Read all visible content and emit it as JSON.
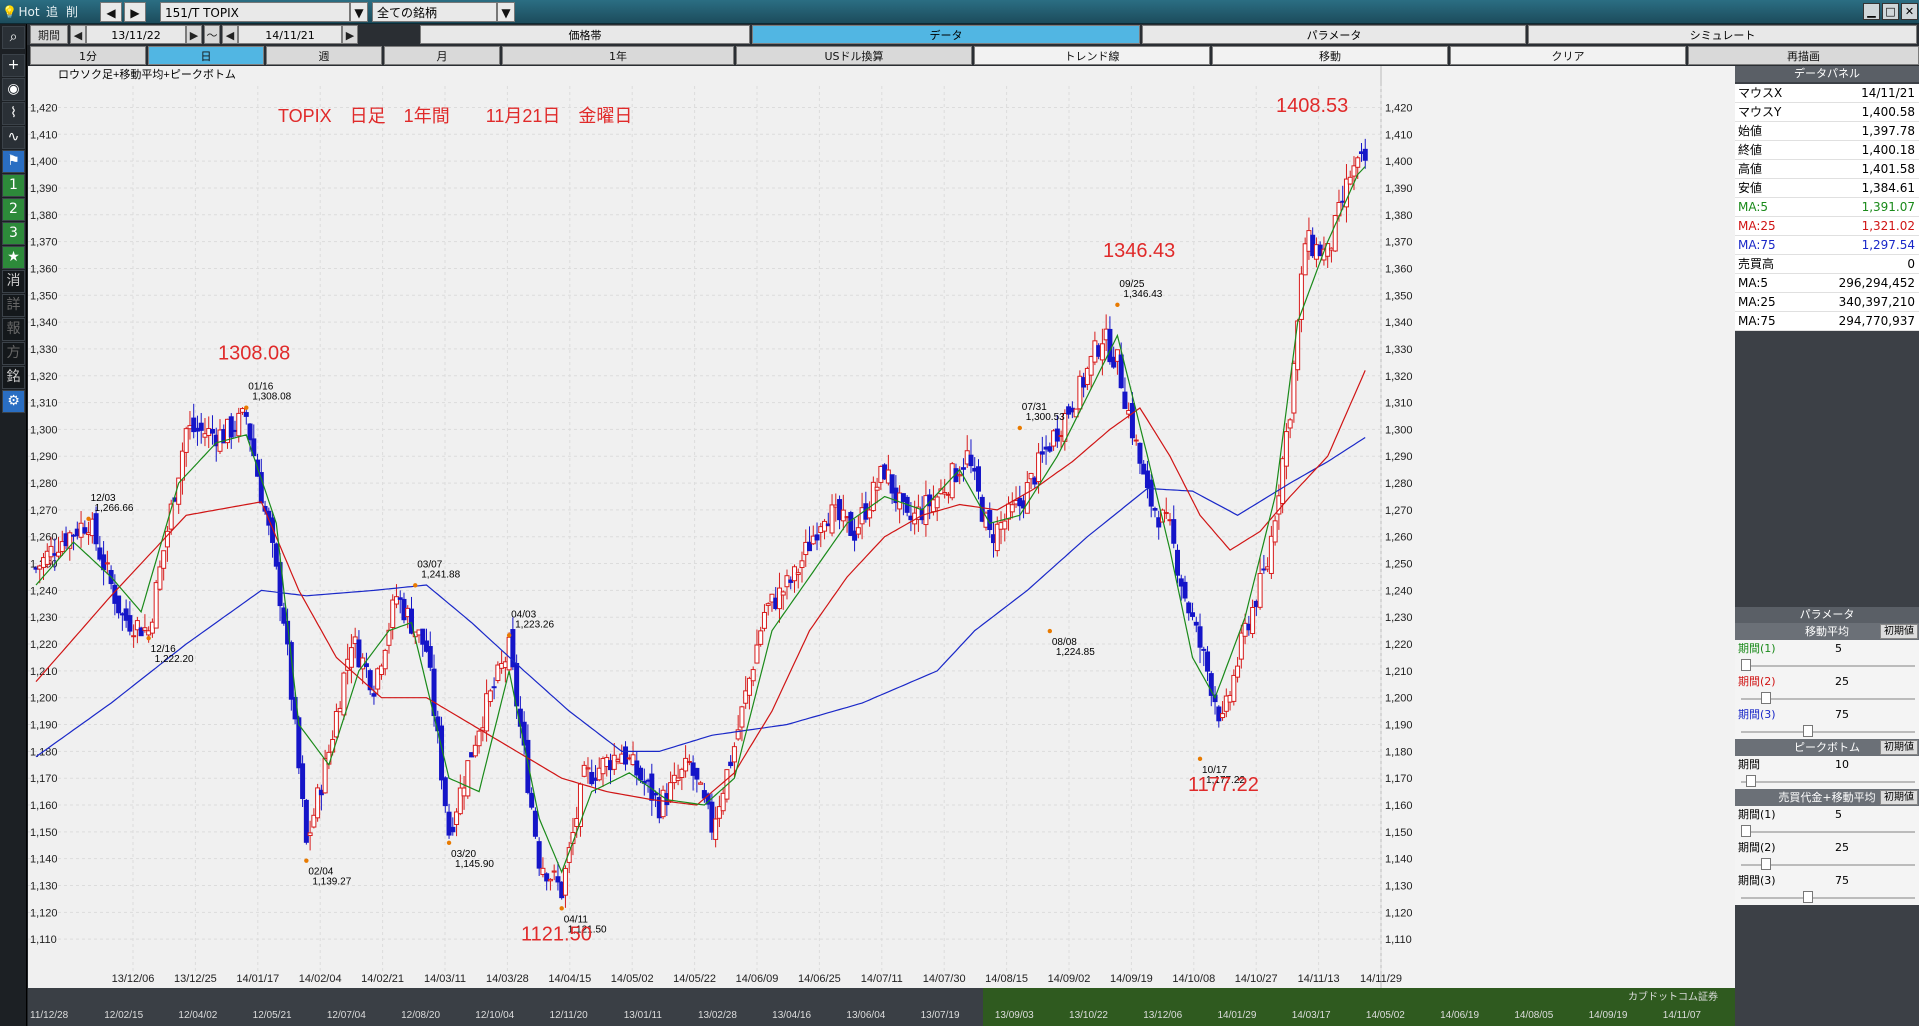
{
  "toolbar": {
    "hot": "Hot",
    "add": "追",
    "del": "削",
    "symbol": "151/T TOPIX",
    "scope": "全ての銘柄",
    "period_label": "期間",
    "date_from": "13/11/22",
    "tilde": "～",
    "date_to": "14/11/21"
  },
  "tabs_row": [
    "価格帯",
    "データ",
    "パラメータ",
    "シミュレート"
  ],
  "interval_row": [
    "1分",
    "日",
    "週",
    "月",
    "1年",
    "USドル換算",
    "トレンド線",
    "移動",
    "クリア",
    "再描画"
  ],
  "sidebar_numbers": [
    "1",
    "2",
    "3"
  ],
  "sidebar_chars": [
    "消",
    "詳",
    "報",
    "方",
    "銘"
  ],
  "chart_data": {
    "type": "candlestick",
    "subtitle": "ロウソク足+移動平均+ピークボトム",
    "title": "TOPIX　日足　1年間　　11月21日　金曜日",
    "ylim": [
      1100,
      1428
    ],
    "yticks": [
      1110,
      1120,
      1130,
      1140,
      1150,
      1160,
      1170,
      1180,
      1190,
      1200,
      1210,
      1220,
      1230,
      1240,
      1250,
      1260,
      1270,
      1280,
      1290,
      1300,
      1310,
      1320,
      1330,
      1340,
      1350,
      1360,
      1370,
      1380,
      1390,
      1400,
      1410,
      1420
    ],
    "xticks": [
      "13/12/06",
      "13/12/25",
      "14/01/17",
      "14/02/04",
      "14/02/21",
      "14/03/11",
      "14/03/28",
      "14/04/15",
      "14/05/02",
      "14/05/22",
      "14/06/09",
      "14/06/25",
      "14/07/11",
      "14/07/30",
      "14/08/15",
      "14/09/02",
      "14/09/19",
      "14/10/08",
      "14/10/27",
      "14/11/13",
      "14/11/29"
    ],
    "big_labels": [
      {
        "text": "1308.08",
        "at": 1308.08
      },
      {
        "text": "1121.50",
        "at": 1121.5
      },
      {
        "text": "1346.43",
        "at": 1346.43
      },
      {
        "text": "1177.22",
        "at": 1177.22
      },
      {
        "text": "1408.53",
        "at": 1408.53
      }
    ],
    "peaks": [
      {
        "date": "12/03",
        "value": "1,266.66",
        "price": 1266.66,
        "type": "peak"
      },
      {
        "date": "12/16",
        "value": "1,222.20",
        "price": 1222.2,
        "type": "bottom"
      },
      {
        "date": "01/16",
        "value": "1,308.08",
        "price": 1308.08,
        "type": "peak"
      },
      {
        "date": "02/04",
        "value": "1,139.27",
        "price": 1139.27,
        "type": "bottom"
      },
      {
        "date": "03/07",
        "value": "1,241.88",
        "price": 1241.88,
        "type": "peak"
      },
      {
        "date": "03/20",
        "value": "1,145.90",
        "price": 1145.9,
        "type": "bottom"
      },
      {
        "date": "04/03",
        "value": "1,223.26",
        "price": 1223.26,
        "type": "peak"
      },
      {
        "date": "04/11",
        "value": "1,121.50",
        "price": 1121.5,
        "type": "bottom"
      },
      {
        "date": "07/31",
        "value": "1,300.53",
        "price": 1300.53,
        "type": "peak"
      },
      {
        "date": "08/08",
        "value": "1,224.85",
        "price": 1224.85,
        "type": "bottom"
      },
      {
        "date": "09/25",
        "value": "1,346.43",
        "price": 1346.43,
        "type": "peak"
      },
      {
        "date": "10/17",
        "value": "1,177.22",
        "price": 1177.22,
        "type": "bottom"
      }
    ],
    "anchors": [
      [
        0,
        1248
      ],
      [
        6,
        1258
      ],
      [
        14,
        1266
      ],
      [
        23,
        1230
      ],
      [
        30,
        1225
      ],
      [
        40,
        1300
      ],
      [
        50,
        1298
      ],
      [
        56,
        1305
      ],
      [
        62,
        1262
      ],
      [
        66,
        1230
      ],
      [
        72,
        1145
      ],
      [
        78,
        1180
      ],
      [
        84,
        1222
      ],
      [
        90,
        1205
      ],
      [
        96,
        1238
      ],
      [
        104,
        1218
      ],
      [
        110,
        1150
      ],
      [
        118,
        1190
      ],
      [
        126,
        1218
      ],
      [
        134,
        1140
      ],
      [
        140,
        1128
      ],
      [
        146,
        1170
      ],
      [
        156,
        1180
      ],
      [
        166,
        1160
      ],
      [
        174,
        1175
      ],
      [
        180,
        1152
      ],
      [
        186,
        1182
      ],
      [
        194,
        1232
      ],
      [
        202,
        1245
      ],
      [
        210,
        1270
      ],
      [
        218,
        1262
      ],
      [
        226,
        1285
      ],
      [
        232,
        1265
      ],
      [
        240,
        1275
      ],
      [
        248,
        1290
      ],
      [
        254,
        1260
      ],
      [
        262,
        1272
      ],
      [
        270,
        1295
      ],
      [
        278,
        1315
      ],
      [
        284,
        1335
      ],
      [
        288,
        1325
      ],
      [
        296,
        1275
      ],
      [
        302,
        1262
      ],
      [
        306,
        1238
      ],
      [
        312,
        1210
      ],
      [
        316,
        1190
      ],
      [
        322,
        1225
      ],
      [
        328,
        1250
      ],
      [
        334,
        1308
      ],
      [
        338,
        1370
      ],
      [
        344,
        1365
      ],
      [
        350,
        1395
      ],
      [
        354,
        1400
      ]
    ],
    "ma5_anchors": [
      [
        0,
        1242
      ],
      [
        10,
        1258
      ],
      [
        20,
        1245
      ],
      [
        28,
        1232
      ],
      [
        38,
        1280
      ],
      [
        48,
        1295
      ],
      [
        56,
        1298
      ],
      [
        64,
        1265
      ],
      [
        70,
        1190
      ],
      [
        78,
        1175
      ],
      [
        86,
        1210
      ],
      [
        94,
        1225
      ],
      [
        100,
        1228
      ],
      [
        110,
        1170
      ],
      [
        118,
        1165
      ],
      [
        126,
        1210
      ],
      [
        134,
        1155
      ],
      [
        140,
        1135
      ],
      [
        148,
        1165
      ],
      [
        158,
        1172
      ],
      [
        168,
        1162
      ],
      [
        178,
        1160
      ],
      [
        186,
        1170
      ],
      [
        196,
        1225
      ],
      [
        206,
        1245
      ],
      [
        216,
        1265
      ],
      [
        226,
        1275
      ],
      [
        236,
        1270
      ],
      [
        246,
        1285
      ],
      [
        254,
        1265
      ],
      [
        262,
        1268
      ],
      [
        272,
        1290
      ],
      [
        282,
        1318
      ],
      [
        288,
        1335
      ],
      [
        296,
        1290
      ],
      [
        302,
        1255
      ],
      [
        308,
        1215
      ],
      [
        314,
        1200
      ],
      [
        322,
        1230
      ],
      [
        330,
        1275
      ],
      [
        336,
        1340
      ],
      [
        344,
        1370
      ],
      [
        352,
        1395
      ],
      [
        354,
        1398
      ]
    ],
    "ma25_anchors": [
      [
        0,
        1206
      ],
      [
        20,
        1238
      ],
      [
        40,
        1268
      ],
      [
        60,
        1273
      ],
      [
        70,
        1240
      ],
      [
        80,
        1215
      ],
      [
        92,
        1200
      ],
      [
        104,
        1200
      ],
      [
        116,
        1190
      ],
      [
        128,
        1180
      ],
      [
        140,
        1170
      ],
      [
        152,
        1165
      ],
      [
        164,
        1162
      ],
      [
        176,
        1160
      ],
      [
        186,
        1172
      ],
      [
        196,
        1195
      ],
      [
        206,
        1225
      ],
      [
        216,
        1245
      ],
      [
        226,
        1260
      ],
      [
        236,
        1268
      ],
      [
        246,
        1272
      ],
      [
        256,
        1270
      ],
      [
        266,
        1278
      ],
      [
        276,
        1288
      ],
      [
        286,
        1300
      ],
      [
        294,
        1308
      ],
      [
        302,
        1290
      ],
      [
        310,
        1268
      ],
      [
        318,
        1255
      ],
      [
        326,
        1262
      ],
      [
        334,
        1275
      ],
      [
        344,
        1290
      ],
      [
        354,
        1322
      ]
    ],
    "ma75_anchors": [
      [
        0,
        1178
      ],
      [
        20,
        1198
      ],
      [
        40,
        1220
      ],
      [
        60,
        1240
      ],
      [
        72,
        1238
      ],
      [
        90,
        1240
      ],
      [
        104,
        1242
      ],
      [
        116,
        1228
      ],
      [
        130,
        1210
      ],
      [
        142,
        1195
      ],
      [
        156,
        1180
      ],
      [
        166,
        1180
      ],
      [
        180,
        1186
      ],
      [
        200,
        1190
      ],
      [
        220,
        1198
      ],
      [
        240,
        1210
      ],
      [
        250,
        1225
      ],
      [
        264,
        1240
      ],
      [
        280,
        1260
      ],
      [
        296,
        1278
      ],
      [
        308,
        1277
      ],
      [
        320,
        1268
      ],
      [
        334,
        1280
      ],
      [
        344,
        1288
      ],
      [
        354,
        1297
      ]
    ]
  },
  "panel": {
    "title": "データパネル",
    "rows": [
      {
        "k": "マウスX",
        "v": "14/11/21",
        "color": "#000000"
      },
      {
        "k": "マウスY",
        "v": "1,400.58",
        "color": "#000000"
      },
      {
        "k": "始値",
        "v": "1,397.78",
        "color": "#000000"
      },
      {
        "k": "終値",
        "v": "1,400.18",
        "color": "#000000"
      },
      {
        "k": "高値",
        "v": "1,401.58",
        "color": "#000000"
      },
      {
        "k": "安値",
        "v": "1,384.61",
        "color": "#000000"
      },
      {
        "k": "MA:5",
        "v": "1,391.07",
        "color": "#1a8a1a"
      },
      {
        "k": "MA:25",
        "v": "1,321.02",
        "color": "#d01515"
      },
      {
        "k": "MA:75",
        "v": "1,297.54",
        "color": "#1a28c8"
      },
      {
        "k": "売買高",
        "v": "0",
        "color": "#000000"
      },
      {
        "k": "MA:5",
        "v": "296,294,452",
        "color": "#000000"
      },
      {
        "k": "MA:25",
        "v": "340,397,210",
        "color": "#000000"
      },
      {
        "k": "MA:75",
        "v": "294,770,937",
        "color": "#000000"
      }
    ],
    "params_title": "パラメータ",
    "reset_label": "初期値",
    "ma_section": "移動平均",
    "ma_rows": [
      {
        "k": "期間(1)",
        "v": "5",
        "level": 0.0
      },
      {
        "k": "期間(2)",
        "v": "25",
        "level": 0.12
      },
      {
        "k": "期間(3)",
        "v": "75",
        "level": 0.38
      }
    ],
    "pb_section": "ピークボトム",
    "pb_rows": [
      {
        "k": "期間",
        "v": "10",
        "level": 0.03
      }
    ],
    "vol_section": "売買代金+移動平均",
    "vol_rows": [
      {
        "k": "期間(1)",
        "v": "5",
        "level": 0.0
      },
      {
        "k": "期間(2)",
        "v": "25",
        "level": 0.12
      },
      {
        "k": "期間(3)",
        "v": "75",
        "level": 0.38
      }
    ]
  },
  "bottom_dates": [
    "11/12/28",
    "12/02/15",
    "12/04/02",
    "12/05/21",
    "12/07/04",
    "12/08/20",
    "12/10/04",
    "12/11/20",
    "13/01/11",
    "13/02/28",
    "13/04/16",
    "13/06/04",
    "13/07/19",
    "13/09/03",
    "13/10/22",
    "13/12/06",
    "14/01/29",
    "14/03/17",
    "14/05/02",
    "14/06/19",
    "14/08/05",
    "14/09/19",
    "14/11/07"
  ],
  "bottom_brand": "カブドットコム証券",
  "colors": {
    "up": "#d81c1c",
    "down": "#1515c8",
    "ma5": "#1a8a1a",
    "ma25": "#d01515",
    "ma75": "#1a28c8",
    "accent": "#51b6e3"
  }
}
